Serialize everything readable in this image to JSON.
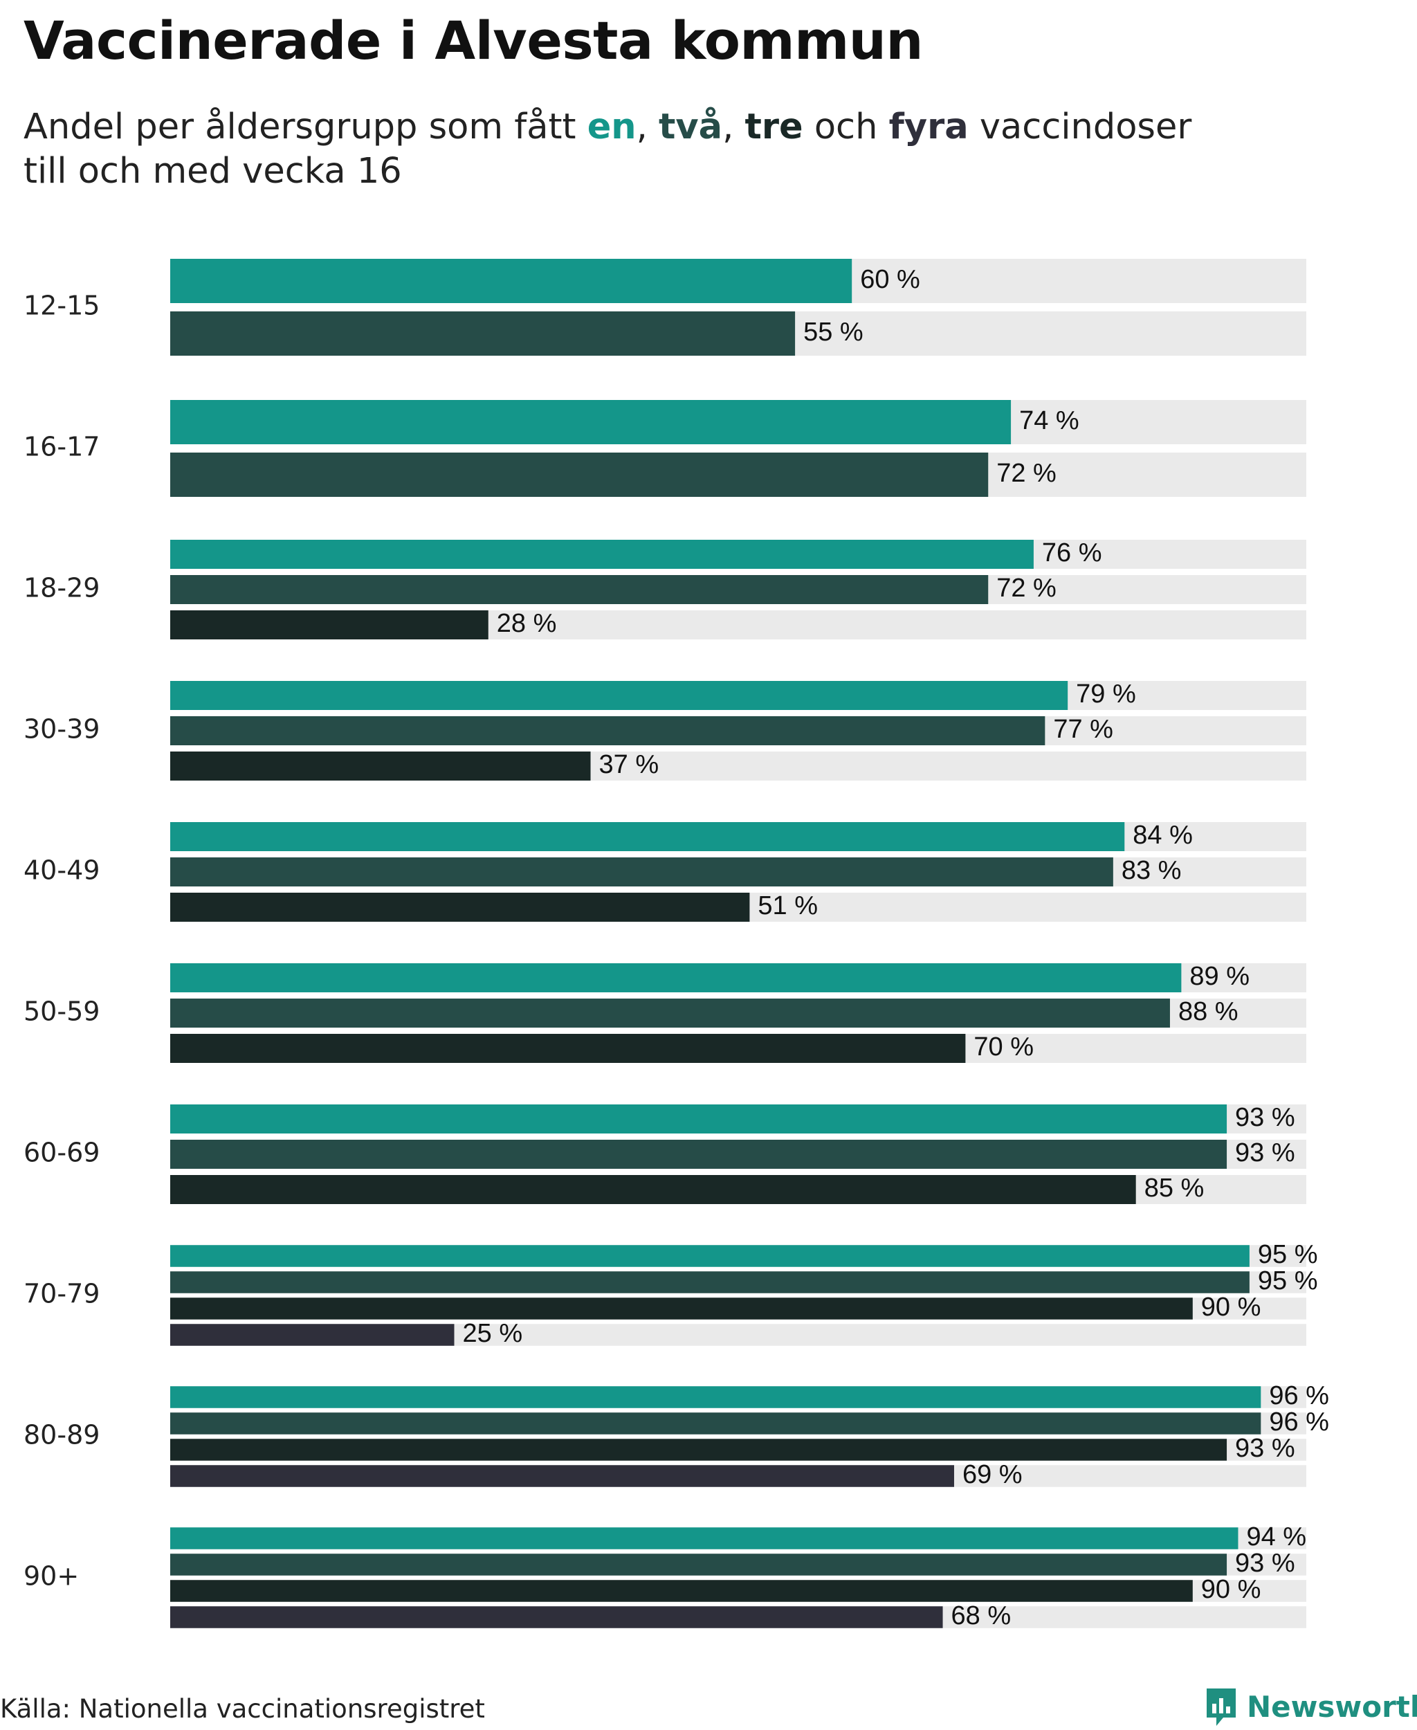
{
  "title": "Vaccinerade i Alvesta kommun",
  "subtitle": {
    "part1": "Andel per åldersgrupp som fått ",
    "kw_one": "en",
    "sep1": ", ",
    "kw_two": "två",
    "sep2": ", ",
    "kw_three": "tre",
    "part2": " och ",
    "kw_four": "fyra",
    "part3": " vaccindoser",
    "line2": "till och med vecka 16"
  },
  "colors": {
    "dose1": "#14968a",
    "dose2": "#264c48",
    "dose3": "#192826",
    "dose4": "#2f2f3b",
    "track": "#eaeaea",
    "brand": "#1f8f80"
  },
  "chart_data": {
    "type": "bar",
    "orientation": "horizontal",
    "xlim": [
      0,
      100
    ],
    "value_suffix": " %",
    "legend": "inline in subtitle",
    "series_names": [
      "en",
      "två",
      "tre",
      "fyra"
    ],
    "groups": [
      {
        "label": "12-15",
        "values": [
          60,
          55
        ]
      },
      {
        "label": "16-17",
        "values": [
          74,
          72
        ]
      },
      {
        "label": "18-29",
        "values": [
          76,
          72,
          28
        ]
      },
      {
        "label": "30-39",
        "values": [
          79,
          77,
          37
        ]
      },
      {
        "label": "40-49",
        "values": [
          84,
          83,
          51
        ]
      },
      {
        "label": "50-59",
        "values": [
          89,
          88,
          70
        ]
      },
      {
        "label": "60-69",
        "values": [
          93,
          93,
          85
        ]
      },
      {
        "label": "70-79",
        "values": [
          95,
          95,
          90,
          25
        ]
      },
      {
        "label": "80-89",
        "values": [
          96,
          96,
          93,
          69
        ]
      },
      {
        "label": "90+",
        "values": [
          94,
          93,
          90,
          68
        ]
      }
    ]
  },
  "footer": {
    "source": "Källa: Nationella vaccinationsregistret",
    "brand": "Newsworthy",
    "brand_icon": "bar-chart-speech-bubble-icon"
  }
}
